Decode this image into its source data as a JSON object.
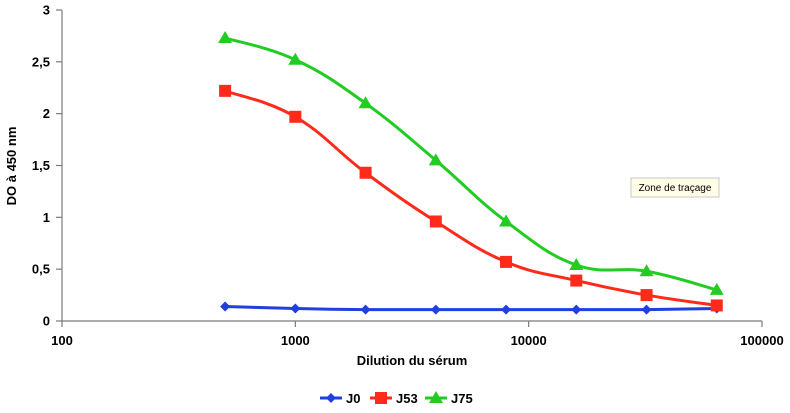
{
  "chart_data": {
    "type": "line",
    "xlabel": "Dilution du sérum",
    "ylabel": "DO à 450 nm",
    "x_scale": "log",
    "xlim": [
      100,
      100000
    ],
    "ylim": [
      0,
      3
    ],
    "x_ticks": [
      "100",
      "1000",
      "10000",
      "100000"
    ],
    "y_ticks": [
      "0",
      "0,5",
      "1",
      "1,5",
      "2",
      "2,5",
      "3"
    ],
    "grid": false,
    "legend_position": "bottom",
    "x": [
      500,
      1000,
      2000,
      4000,
      8000,
      16000,
      32000,
      64000
    ],
    "series": [
      {
        "name": "J0",
        "color": "#1f3fe0",
        "marker": "diamond",
        "values": [
          0.14,
          0.12,
          0.11,
          0.11,
          0.11,
          0.11,
          0.11,
          0.12
        ]
      },
      {
        "name": "J53",
        "color": "#ff2a1a",
        "marker": "square",
        "values": [
          2.22,
          1.97,
          1.43,
          0.96,
          0.57,
          0.39,
          0.25,
          0.15
        ]
      },
      {
        "name": "J75",
        "color": "#22cc22",
        "marker": "triangle",
        "values": [
          2.73,
          2.52,
          2.1,
          1.55,
          0.96,
          0.54,
          0.48,
          0.3
        ]
      }
    ],
    "tooltip": "Zone de traçage"
  }
}
